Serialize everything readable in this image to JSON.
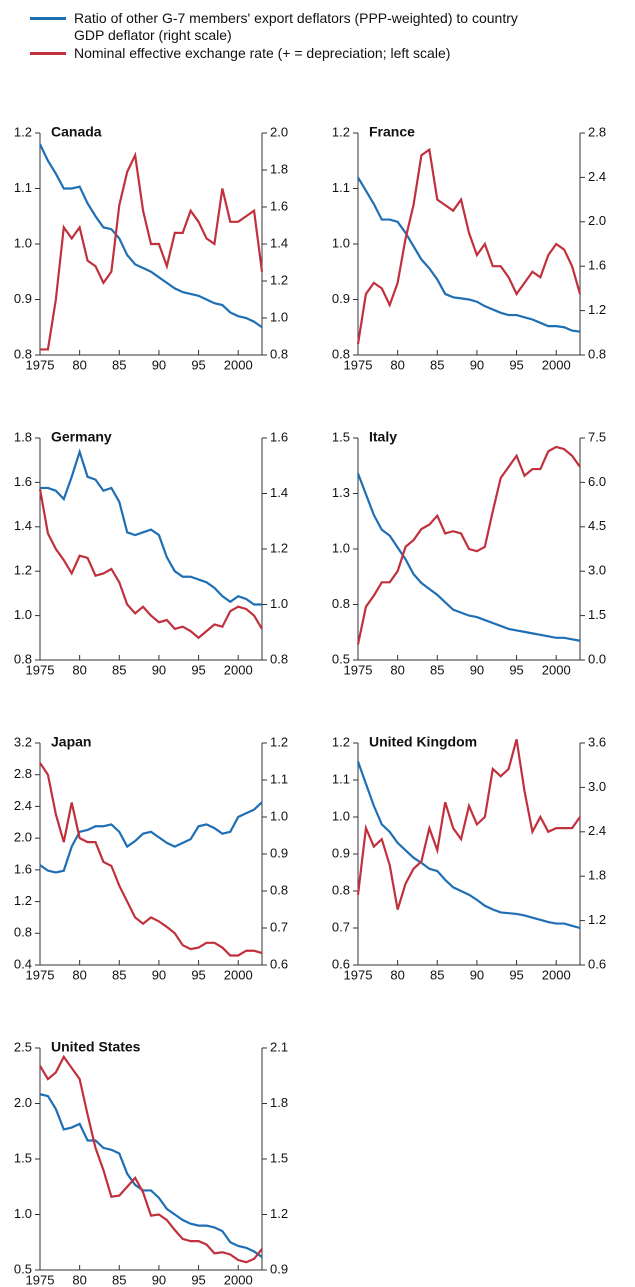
{
  "legend": [
    {
      "name": "Ratio of other G-7 members' export deflators (PPP-weighted) to country GDP deflator (right scale)",
      "color": "#1f6fb5"
    },
    {
      "name": "Nominal effective exchange rate (+ = depreciation; left scale)",
      "color": "#c0313d"
    }
  ],
  "chart_data": [
    {
      "type": "line",
      "title": "Canada",
      "x": [
        1975,
        1976,
        1977,
        1978,
        1979,
        1980,
        1981,
        1982,
        1983,
        1984,
        1985,
        1986,
        1987,
        1988,
        1989,
        1990,
        1991,
        1992,
        1993,
        1994,
        1995,
        1996,
        1997,
        1998,
        1999,
        2000,
        2001,
        2002,
        2003
      ],
      "xlim": [
        1975,
        2003
      ],
      "xticks": [
        1975,
        {
          "value": 1980,
          "label": "80"
        },
        {
          "value": 1985,
          "label": "85"
        },
        {
          "value": 1990,
          "label": "90"
        },
        {
          "value": 1995,
          "label": "95"
        },
        2000
      ],
      "ylim": [
        0.8,
        1.2
      ],
      "yticks": [
        0.8,
        0.9,
        {
          "value": 1,
          "label": "1.0"
        },
        1.1,
        1.2
      ],
      "y2lim": [
        0.8,
        2.0
      ],
      "y2ticks": [
        0.8,
        {
          "value": 1,
          "label": "1.0"
        },
        1.2,
        1.4,
        1.6,
        1.8,
        {
          "value": 2,
          "label": "2.0"
        }
      ],
      "series": [
        {
          "color": "#1f6fb5",
          "axis": "y2",
          "values": [
            1.94,
            1.85,
            1.78,
            1.7,
            1.7,
            1.71,
            1.62,
            1.55,
            1.49,
            1.48,
            1.43,
            1.34,
            1.29,
            1.27,
            1.25,
            1.22,
            1.19,
            1.16,
            1.14,
            1.13,
            1.12,
            1.1,
            1.08,
            1.07,
            1.03,
            1.01,
            1.0,
            0.98,
            0.95
          ]
        },
        {
          "color": "#c0313d",
          "values": [
            0.81,
            0.81,
            0.9,
            1.03,
            1.01,
            1.03,
            0.97,
            0.96,
            0.93,
            0.95,
            1.07,
            1.13,
            1.16,
            1.06,
            1.0,
            1.0,
            0.96,
            1.02,
            1.02,
            1.06,
            1.04,
            1.01,
            1.0,
            1.1,
            1.04,
            1.04,
            1.05,
            1.06,
            0.95
          ]
        }
      ]
    },
    {
      "type": "line",
      "title": "France",
      "x": [
        1975,
        1976,
        1977,
        1978,
        1979,
        1980,
        1981,
        1982,
        1983,
        1984,
        1985,
        1986,
        1987,
        1988,
        1989,
        1990,
        1991,
        1992,
        1993,
        1994,
        1995,
        1996,
        1997,
        1998,
        1999,
        2000,
        2001,
        2002,
        2003
      ],
      "xlim": [
        1975,
        2003
      ],
      "xticks": [
        1975,
        {
          "value": 1980,
          "label": "80"
        },
        {
          "value": 1985,
          "label": "85"
        },
        {
          "value": 1990,
          "label": "90"
        },
        {
          "value": 1995,
          "label": "95"
        },
        2000
      ],
      "ylim": [
        0.8,
        1.2
      ],
      "yticks": [
        0.8,
        0.9,
        {
          "value": 1,
          "label": "1.0"
        },
        1.1,
        1.2
      ],
      "y2lim": [
        0.8,
        2.8
      ],
      "y2ticks": [
        0.8,
        1.2,
        1.6,
        {
          "value": 2,
          "label": "2.0"
        },
        2.4,
        2.8
      ],
      "series": [
        {
          "color": "#1f6fb5",
          "axis": "y2",
          "values": [
            2.4,
            2.28,
            2.16,
            2.02,
            2.02,
            2.0,
            1.9,
            1.78,
            1.66,
            1.58,
            1.48,
            1.35,
            1.32,
            1.31,
            1.3,
            1.28,
            1.24,
            1.21,
            1.18,
            1.16,
            1.16,
            1.14,
            1.12,
            1.09,
            1.06,
            1.06,
            1.05,
            1.02,
            1.01
          ]
        },
        {
          "color": "#c0313d",
          "values": [
            0.82,
            0.91,
            0.93,
            0.92,
            0.89,
            0.93,
            1.01,
            1.07,
            1.16,
            1.17,
            1.08,
            1.07,
            1.06,
            1.08,
            1.02,
            0.98,
            1.0,
            0.96,
            0.96,
            0.94,
            0.91,
            0.93,
            0.95,
            0.94,
            0.98,
            1.0,
            0.99,
            0.96,
            0.91
          ]
        }
      ]
    },
    {
      "type": "line",
      "title": "Germany",
      "x": [
        1975,
        1976,
        1977,
        1978,
        1979,
        1980,
        1981,
        1982,
        1983,
        1984,
        1985,
        1986,
        1987,
        1988,
        1989,
        1990,
        1991,
        1992,
        1993,
        1994,
        1995,
        1996,
        1997,
        1998,
        1999,
        2000,
        2001,
        2002,
        2003
      ],
      "xlim": [
        1975,
        2003
      ],
      "xticks": [
        1975,
        {
          "value": 1980,
          "label": "80"
        },
        {
          "value": 1985,
          "label": "85"
        },
        {
          "value": 1990,
          "label": "90"
        },
        {
          "value": 1995,
          "label": "95"
        },
        2000
      ],
      "ylim": [
        0.8,
        1.8
      ],
      "yticks": [
        0.8,
        {
          "value": 1,
          "label": "1.0"
        },
        1.2,
        1.4,
        1.6,
        1.8
      ],
      "y2lim": [
        0.8,
        1.6
      ],
      "y2ticks": [
        0.8,
        {
          "value": 1,
          "label": "1.0"
        },
        1.2,
        1.4,
        1.6
      ],
      "series": [
        {
          "color": "#1f6fb5",
          "axis": "y2",
          "values": [
            1.42,
            1.42,
            1.41,
            1.38,
            1.46,
            1.55,
            1.46,
            1.45,
            1.41,
            1.42,
            1.37,
            1.26,
            1.25,
            1.26,
            1.27,
            1.25,
            1.17,
            1.12,
            1.1,
            1.1,
            1.09,
            1.08,
            1.06,
            1.03,
            1.01,
            1.03,
            1.02,
            1.0,
            1.0
          ]
        },
        {
          "color": "#c0313d",
          "values": [
            1.57,
            1.37,
            1.3,
            1.25,
            1.19,
            1.27,
            1.26,
            1.18,
            1.19,
            1.21,
            1.15,
            1.05,
            1.01,
            1.04,
            1.0,
            0.97,
            0.98,
            0.94,
            0.95,
            0.93,
            0.9,
            0.93,
            0.96,
            0.95,
            1.02,
            1.04,
            1.03,
            1.0,
            0.94
          ]
        }
      ]
    },
    {
      "type": "line",
      "title": "Italy",
      "x": [
        1975,
        1976,
        1977,
        1978,
        1979,
        1980,
        1981,
        1982,
        1983,
        1984,
        1985,
        1986,
        1987,
        1988,
        1989,
        1990,
        1991,
        1992,
        1993,
        1994,
        1995,
        1996,
        1997,
        1998,
        1999,
        2000,
        2001,
        2002,
        2003
      ],
      "xlim": [
        1975,
        2003
      ],
      "xticks": [
        1975,
        {
          "value": 1980,
          "label": "80"
        },
        {
          "value": 1985,
          "label": "85"
        },
        {
          "value": 1990,
          "label": "90"
        },
        {
          "value": 1995,
          "label": "95"
        },
        2000
      ],
      "ylim": [
        0.5,
        1.5
      ],
      "yticks": [
        0.5,
        {
          "value": 0.75,
          "label": "0.8"
        },
        {
          "value": 1,
          "label": "1.0"
        },
        {
          "value": 1.25,
          "label": "1.3"
        },
        1.5
      ],
      "y2lim": [
        0,
        7.5
      ],
      "y2ticks": [
        {
          "value": 0,
          "label": "0.0"
        },
        1.5,
        {
          "value": 3,
          "label": "3.0"
        },
        4.5,
        {
          "value": 6,
          "label": "6.0"
        },
        7.5
      ],
      "series": [
        {
          "color": "#1f6fb5",
          "axis": "y2",
          "values": [
            6.3,
            5.6,
            4.9,
            4.4,
            4.2,
            3.8,
            3.4,
            2.9,
            2.6,
            2.4,
            2.2,
            1.95,
            1.7,
            1.6,
            1.5,
            1.45,
            1.35,
            1.25,
            1.15,
            1.05,
            1.0,
            0.95,
            0.9,
            0.85,
            0.8,
            0.75,
            0.75,
            0.7,
            0.65
          ]
        },
        {
          "color": "#c0313d",
          "values": [
            0.57,
            0.74,
            0.79,
            0.85,
            0.85,
            0.9,
            1.01,
            1.04,
            1.09,
            1.11,
            1.15,
            1.07,
            1.08,
            1.07,
            1.0,
            0.99,
            1.01,
            1.17,
            1.32,
            1.37,
            1.42,
            1.33,
            1.36,
            1.36,
            1.44,
            1.46,
            1.45,
            1.42,
            1.37
          ]
        }
      ]
    },
    {
      "type": "line",
      "title": "Japan",
      "x": [
        1975,
        1976,
        1977,
        1978,
        1979,
        1980,
        1981,
        1982,
        1983,
        1984,
        1985,
        1986,
        1987,
        1988,
        1989,
        1990,
        1991,
        1992,
        1993,
        1994,
        1995,
        1996,
        1997,
        1998,
        1999,
        2000,
        2001,
        2002,
        2003
      ],
      "xlim": [
        1975,
        2003
      ],
      "xticks": [
        1975,
        {
          "value": 1980,
          "label": "80"
        },
        {
          "value": 1985,
          "label": "85"
        },
        {
          "value": 1990,
          "label": "90"
        },
        {
          "value": 1995,
          "label": "95"
        },
        2000
      ],
      "ylim": [
        0.4,
        3.2
      ],
      "yticks": [
        0.4,
        0.8,
        1.2,
        1.6,
        {
          "value": 2,
          "label": "2.0"
        },
        2.4,
        2.8,
        3.2
      ],
      "y2lim": [
        0.6,
        1.2
      ],
      "y2ticks": [
        0.6,
        0.7,
        0.8,
        0.9,
        {
          "value": 1,
          "label": "1.0"
        },
        1.1,
        1.2
      ],
      "series": [
        {
          "color": "#1f6fb5",
          "axis": "y2",
          "values": [
            0.87,
            0.855,
            0.85,
            0.855,
            0.92,
            0.96,
            0.965,
            0.975,
            0.975,
            0.98,
            0.96,
            0.92,
            0.935,
            0.955,
            0.96,
            0.945,
            0.93,
            0.92,
            0.93,
            0.94,
            0.975,
            0.98,
            0.97,
            0.955,
            0.96,
            1.0,
            1.01,
            1.02,
            1.04
          ]
        },
        {
          "color": "#c0313d",
          "values": [
            2.95,
            2.8,
            2.3,
            1.95,
            2.45,
            2.0,
            1.95,
            1.95,
            1.7,
            1.65,
            1.4,
            1.2,
            1.0,
            0.92,
            1.0,
            0.95,
            0.88,
            0.8,
            0.65,
            0.6,
            0.62,
            0.68,
            0.68,
            0.62,
            0.52,
            0.52,
            0.58,
            0.58,
            0.55
          ]
        }
      ]
    },
    {
      "type": "line",
      "title": "United Kingdom",
      "x": [
        1975,
        1976,
        1977,
        1978,
        1979,
        1980,
        1981,
        1982,
        1983,
        1984,
        1985,
        1986,
        1987,
        1988,
        1989,
        1990,
        1991,
        1992,
        1993,
        1994,
        1995,
        1996,
        1997,
        1998,
        1999,
        2000,
        2001,
        2002,
        2003
      ],
      "xlim": [
        1975,
        2003
      ],
      "xticks": [
        1975,
        {
          "value": 1980,
          "label": "80"
        },
        {
          "value": 1985,
          "label": "85"
        },
        {
          "value": 1990,
          "label": "90"
        },
        {
          "value": 1995,
          "label": "95"
        },
        2000
      ],
      "ylim": [
        0.6,
        1.2
      ],
      "yticks": [
        0.6,
        0.7,
        0.8,
        0.9,
        {
          "value": 1,
          "label": "1.0"
        },
        1.1,
        1.2
      ],
      "y2lim": [
        0.6,
        3.6
      ],
      "y2ticks": [
        0.6,
        1.2,
        1.8,
        2.4,
        {
          "value": 3,
          "label": "3.0"
        },
        3.6
      ],
      "series": [
        {
          "color": "#1f6fb5",
          "axis": "y2",
          "values": [
            3.35,
            3.05,
            2.75,
            2.5,
            2.4,
            2.25,
            2.15,
            2.05,
            1.98,
            1.9,
            1.87,
            1.75,
            1.65,
            1.6,
            1.55,
            1.48,
            1.4,
            1.35,
            1.31,
            1.3,
            1.29,
            1.27,
            1.24,
            1.21,
            1.18,
            1.16,
            1.16,
            1.13,
            1.1
          ]
        },
        {
          "color": "#c0313d",
          "values": [
            0.79,
            0.97,
            0.92,
            0.94,
            0.87,
            0.75,
            0.82,
            0.86,
            0.88,
            0.97,
            0.91,
            1.04,
            0.97,
            0.94,
            1.03,
            0.98,
            1.0,
            1.13,
            1.11,
            1.13,
            1.21,
            1.07,
            0.96,
            1.0,
            0.96,
            0.97,
            0.97,
            0.97,
            1.0
          ]
        }
      ]
    },
    {
      "type": "line",
      "title": "United States",
      "x": [
        1975,
        1976,
        1977,
        1978,
        1979,
        1980,
        1981,
        1982,
        1983,
        1984,
        1985,
        1986,
        1987,
        1988,
        1989,
        1990,
        1991,
        1992,
        1993,
        1994,
        1995,
        1996,
        1997,
        1998,
        1999,
        2000,
        2001,
        2002,
        2003
      ],
      "xlim": [
        1975,
        2003
      ],
      "xticks": [
        1975,
        {
          "value": 1980,
          "label": "80"
        },
        {
          "value": 1985,
          "label": "85"
        },
        {
          "value": 1990,
          "label": "90"
        },
        {
          "value": 1995,
          "label": "95"
        },
        2000
      ],
      "ylim": [
        0.5,
        2.5
      ],
      "yticks": [
        0.5,
        {
          "value": 1,
          "label": "1.0"
        },
        1.5,
        {
          "value": 2,
          "label": "2.0"
        },
        2.5
      ],
      "y2lim": [
        0.9,
        2.1
      ],
      "y2ticks": [
        0.9,
        1.2,
        1.5,
        1.8,
        2.1
      ],
      "series": [
        {
          "color": "#1f6fb5",
          "axis": "y2",
          "values": [
            1.85,
            1.84,
            1.77,
            1.66,
            1.67,
            1.69,
            1.6,
            1.6,
            1.56,
            1.55,
            1.53,
            1.42,
            1.36,
            1.33,
            1.33,
            1.29,
            1.23,
            1.2,
            1.17,
            1.15,
            1.14,
            1.14,
            1.13,
            1.11,
            1.05,
            1.03,
            1.02,
            1.0,
            0.97
          ]
        },
        {
          "color": "#c0313d",
          "values": [
            2.34,
            2.22,
            2.28,
            2.42,
            2.32,
            2.22,
            1.9,
            1.6,
            1.4,
            1.16,
            1.17,
            1.25,
            1.33,
            1.2,
            0.99,
            1.0,
            0.95,
            0.86,
            0.78,
            0.76,
            0.76,
            0.73,
            0.65,
            0.66,
            0.64,
            0.59,
            0.57,
            0.6,
            0.69
          ]
        }
      ]
    }
  ]
}
